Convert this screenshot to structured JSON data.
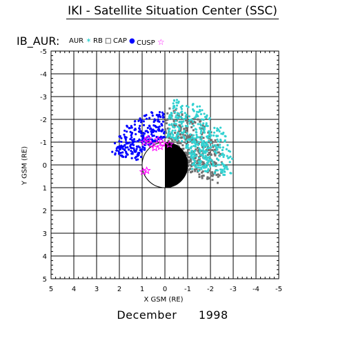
{
  "header": {
    "title": "IKI - Satellite Situation Center (SSC)"
  },
  "panel": {
    "label": "IB_AUR:"
  },
  "legend": [
    {
      "label": "AUR",
      "symbol": "✶",
      "color": "#33d1d1"
    },
    {
      "label": "RB",
      "symbol": "□",
      "color": "#000000"
    },
    {
      "label": "CAP",
      "symbol": "●",
      "color": "#0000ff"
    },
    {
      "label": "CUSP",
      "symbol": "☆",
      "color": "#ff00ff"
    }
  ],
  "footer": {
    "month": "December",
    "year": "1998"
  },
  "chart_data": {
    "type": "scatter",
    "title": "IKI - Satellite Situation Center (SSC)",
    "xlabel": "X GSM (RE)",
    "ylabel": "Y GSM (RE)",
    "xlim": [
      5,
      -5
    ],
    "ylim": [
      -5,
      5
    ],
    "x_ticks": [
      "5",
      "4",
      "3",
      "2",
      "1",
      "0",
      "-1",
      "-2",
      "-3",
      "-4",
      "-5"
    ],
    "y_ticks": [
      "-5",
      "-4",
      "-3",
      "-2",
      "-1",
      "0",
      "1",
      "2",
      "3",
      "4",
      "5"
    ],
    "grid": true,
    "regions": [
      {
        "name": "RB",
        "color": "#707070",
        "r_inner": 1.0,
        "r_outer": 2.5,
        "theta_start": 90,
        "theta_end": 200,
        "count": 330
      },
      {
        "name": "AUR",
        "color": "#33d1d1",
        "r_inner": 1.2,
        "r_outer": 3.0,
        "theta_start": 95,
        "theta_end": 190,
        "count": 420
      },
      {
        "name": "CAP",
        "color": "#0000ff",
        "r_inner": 1.1,
        "r_outer": 2.4,
        "theta_start": 10,
        "theta_end": 90,
        "count": 260
      },
      {
        "name": "CUSP",
        "color": "#ff00ff",
        "points": [
          [
            0.9,
            -1.0
          ],
          [
            0.6,
            -0.9
          ],
          [
            0.3,
            -1.1
          ],
          [
            0.1,
            -0.95
          ],
          [
            -0.2,
            -0.9
          ],
          [
            0.45,
            -0.75
          ],
          [
            0.75,
            -1.15
          ],
          [
            0.2,
            -0.8
          ],
          [
            0.95,
            0.3
          ],
          [
            0.8,
            0.25
          ]
        ]
      }
    ],
    "earth": {
      "radius": 1.0,
      "night_side": "x<0"
    }
  }
}
